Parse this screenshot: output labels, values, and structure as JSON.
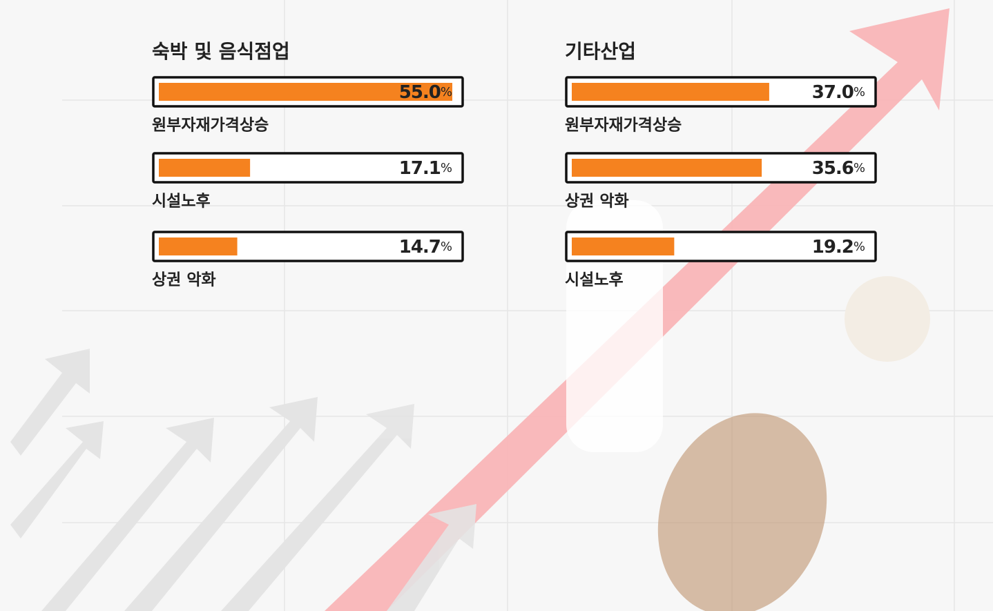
{
  "chart_data": [
    {
      "type": "bar",
      "orientation": "horizontal",
      "title": "숙박 및 음식점업",
      "categories": [
        "원부자재가격상승",
        "시설노후",
        "상권 악화"
      ],
      "values": [
        55.0,
        17.1,
        14.7
      ],
      "value_labels": [
        "55.0%",
        "17.1%",
        "14.7%"
      ],
      "color": "#f5821f"
    },
    {
      "type": "bar",
      "orientation": "horizontal",
      "title": "기타산업",
      "categories": [
        "원부자재가격상승",
        "상권 악화",
        "시설노후"
      ],
      "values": [
        37.0,
        35.6,
        19.2
      ],
      "value_labels": [
        "37.0%",
        "35.6%",
        "19.2%"
      ],
      "color": "#f5821f"
    }
  ]
}
